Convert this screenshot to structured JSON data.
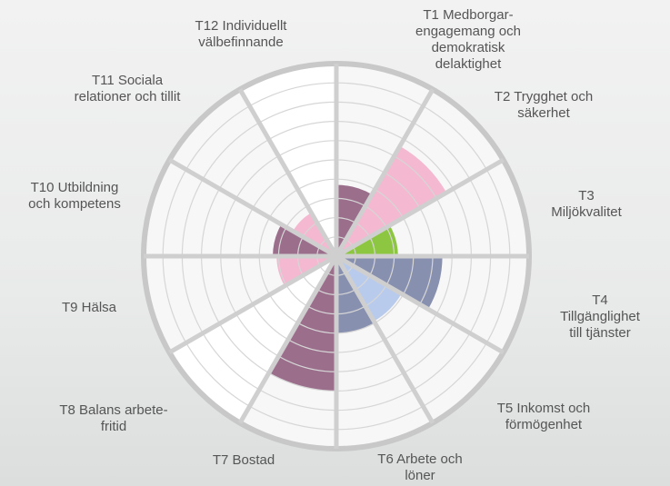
{
  "chart_data": {
    "type": "polar-area",
    "categories": [
      "T1 Medborgar-\nengagemang och\ndemokratisk\ndelaktighet",
      "T2 Trygghet och\nsäkerhet",
      "T3 Miljökvalitet",
      "T4 Tillgänglighet\ntill tjänster",
      "T5 Inkomst och\nförmögenhet",
      "T6 Arbete och\nlöner",
      "T7 Bostad",
      "T8 Balans arbete-\nfritid",
      "T9 Hälsa",
      "T10 Utbildning\noch kompetens",
      "T11 Sociala\nrelationer och tillit",
      "T12 Individuellt\nvälbefinnande"
    ],
    "values": [
      3.7,
      6.6,
      3.2,
      5.5,
      3.9,
      4.0,
      7.0,
      10,
      3.1,
      3.3,
      2.6,
      10
    ],
    "colors": [
      "#9b6f8c",
      "#f4b8d0",
      "#8dc641",
      "#8890b0",
      "#b9cbec",
      "#8890b0",
      "#9b6f8c",
      "#ffffff",
      "#f4b8d0",
      "#9b6f8c",
      "#f4b8d0",
      "#ffffff"
    ],
    "ylim": [
      0,
      10
    ],
    "yticks": [
      1,
      2,
      3,
      4,
      5,
      6,
      7,
      8,
      9,
      10
    ],
    "grid": true
  }
}
